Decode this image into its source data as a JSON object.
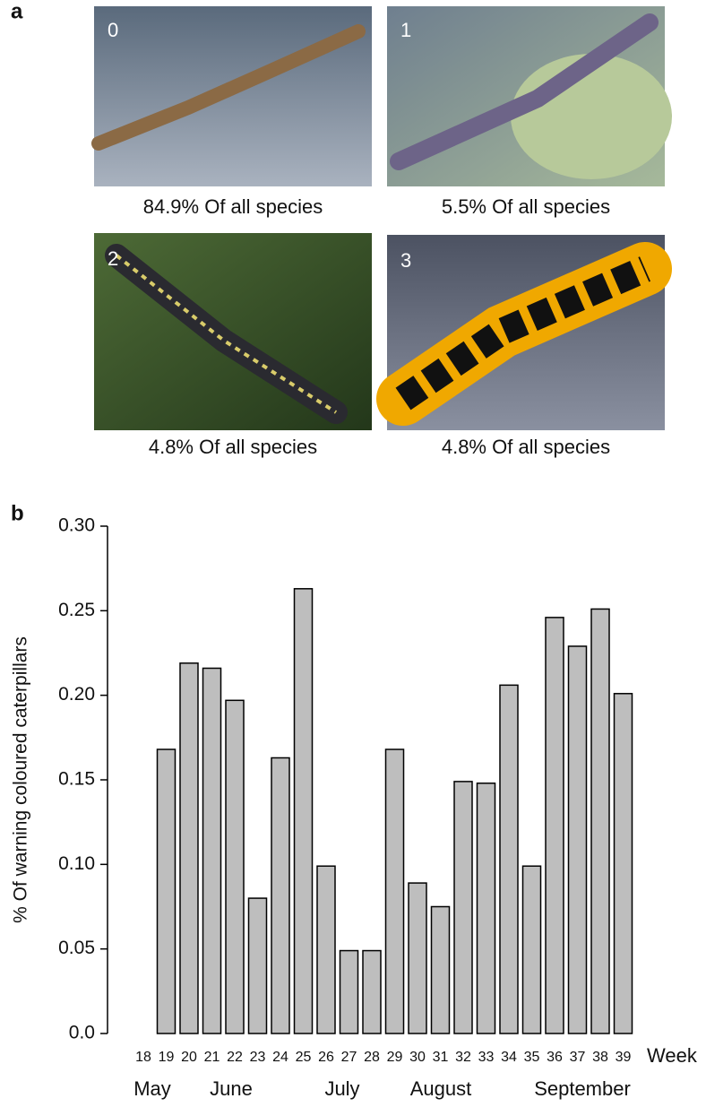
{
  "panel_labels": [
    "a",
    "b"
  ],
  "photos": [
    {
      "number": "0",
      "caption": "84.9% Of all species"
    },
    {
      "number": "1",
      "caption": "5.5% Of all species"
    },
    {
      "number": "2",
      "caption": "4.8% Of all species"
    },
    {
      "number": "3",
      "caption": "4.8% Of all species"
    }
  ],
  "chart_data": {
    "type": "bar",
    "y_label": "% Of  warning coloured caterpillars",
    "x_label": "Week",
    "categories": [
      "18",
      "19",
      "20",
      "21",
      "22",
      "23",
      "24",
      "25",
      "26",
      "27",
      "28",
      "29",
      "30",
      "31",
      "32",
      "33",
      "34",
      "35",
      "36",
      "37",
      "38",
      "39"
    ],
    "values": [
      null,
      0.168,
      0.219,
      0.216,
      0.197,
      0.08,
      0.163,
      0.263,
      0.099,
      0.049,
      0.049,
      0.168,
      0.089,
      0.075,
      0.149,
      0.148,
      0.206,
      0.099,
      0.246,
      0.229,
      0.251,
      0.201
    ],
    "color": "#bebebe",
    "months": [
      "May",
      "June",
      "July",
      "August",
      "September"
    ],
    "ylim": [
      0,
      0.3
    ],
    "yticks": [
      {
        "value": 0,
        "label": "0.0"
      },
      0.05,
      {
        "value": 0.1,
        "label": "0.10"
      },
      0.15,
      {
        "value": 0.2,
        "label": "0.20"
      },
      0.25,
      {
        "value": 0.3,
        "label": "0.30"
      }
    ]
  }
}
